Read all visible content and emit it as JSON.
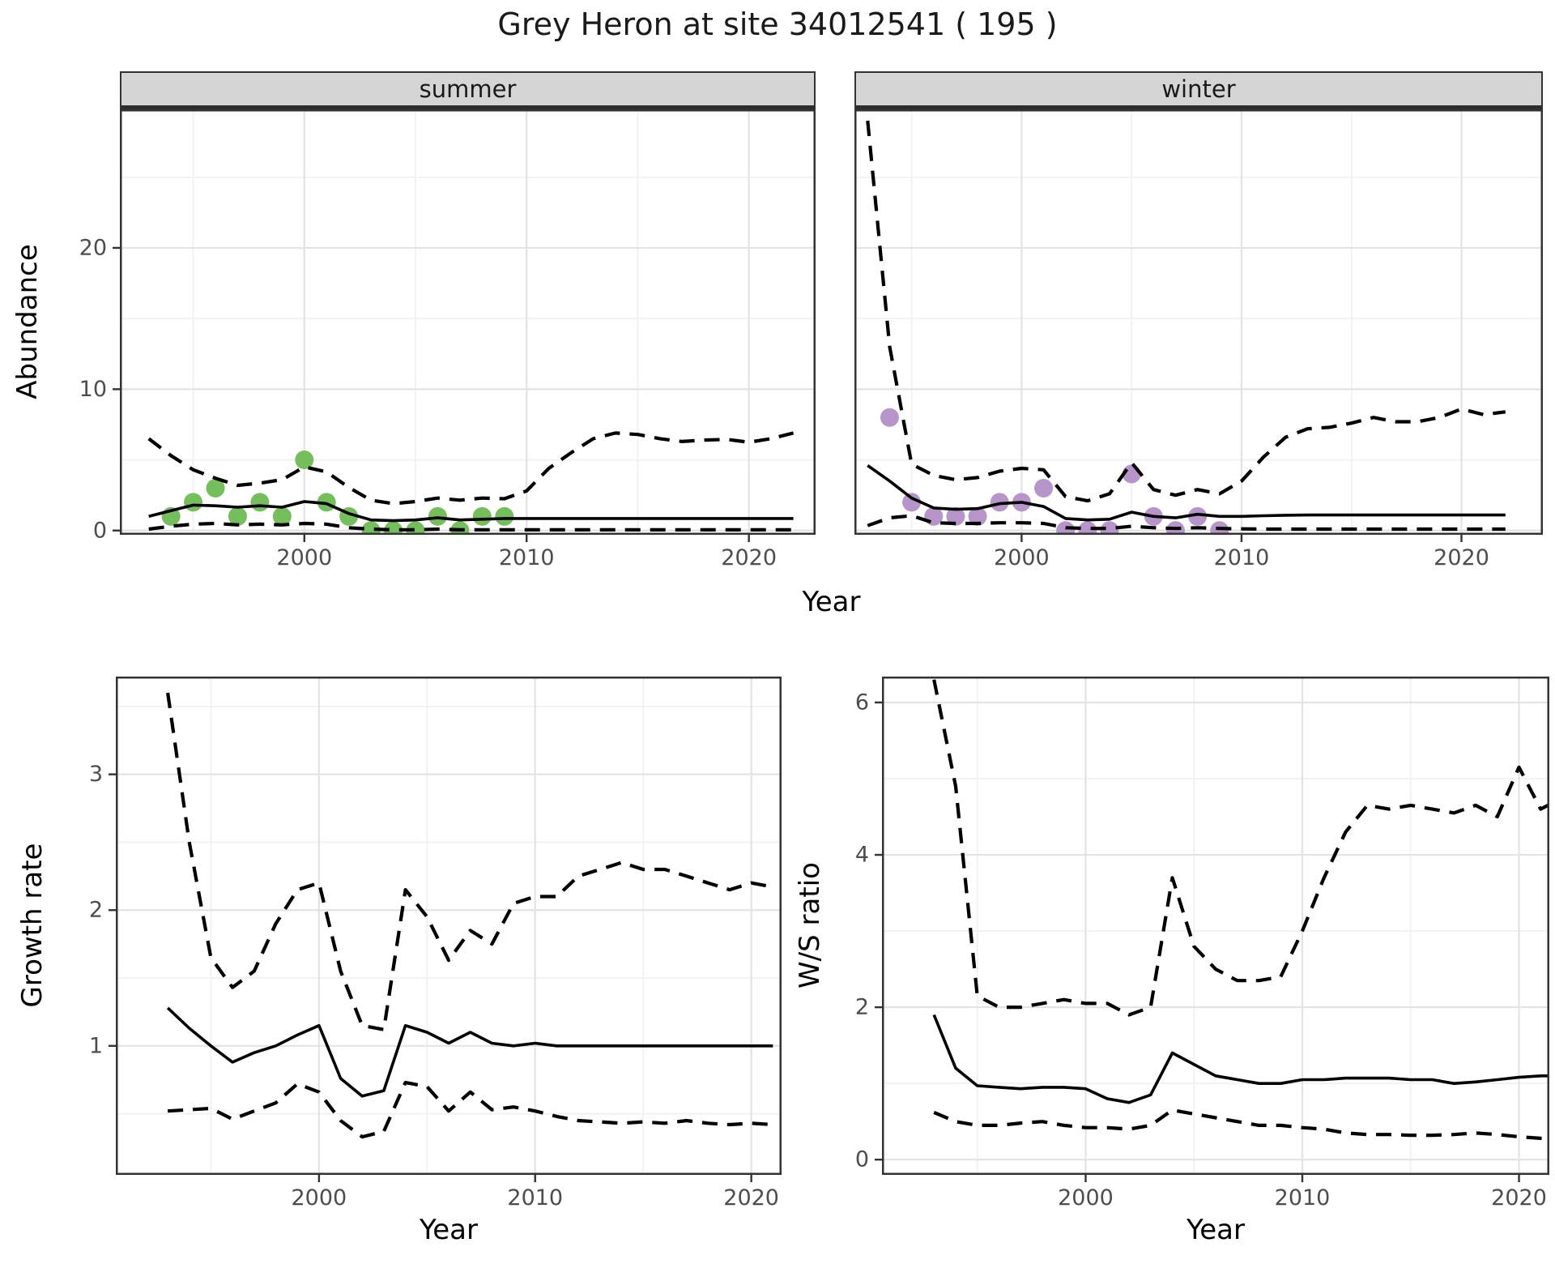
{
  "title": "Grey Heron at site 34012541 ( 195 )",
  "colors": {
    "summer_points": "#74bf5b",
    "winter_points": "#b795ca",
    "line": "#000000",
    "grid_major": "#e3e3e3",
    "grid_minor": "#f1f1f1",
    "panel_border": "#333333",
    "strip_bg": "#d5d5d5",
    "tick_label": "#4d4d4d"
  },
  "chart_data": [
    {
      "id": "abundance-summer",
      "type": "line",
      "facet_label": "summer",
      "xlabel": "Year",
      "ylabel": "Abundance",
      "xlim": [
        1991.7,
        2023.0
      ],
      "ylim": [
        -0.3,
        29.8
      ],
      "xticks": [
        2000,
        2010,
        2020
      ],
      "xticks_minor": [
        1995,
        2005,
        2015
      ],
      "yticks": [
        0,
        10,
        20
      ],
      "yticks_minor": [
        5,
        15,
        25
      ],
      "show_y_axis": true,
      "grid": true,
      "legend": "none",
      "points": {
        "name": "observed-count",
        "color": "#74bf5b",
        "x": [
          1994,
          1995,
          1996,
          1997,
          1998,
          1999,
          2000,
          2001,
          2002,
          2003,
          2004,
          2005,
          2006,
          2007,
          2008,
          2009
        ],
        "y": [
          1,
          2,
          3,
          1,
          2,
          1,
          5,
          2,
          1,
          0,
          0,
          0,
          1,
          0,
          1,
          1
        ]
      },
      "series": [
        {
          "name": "lower-ci",
          "style": "dashed",
          "x": [
            1993,
            1994,
            1995,
            1996,
            1997,
            1998,
            1999,
            2000,
            2001,
            2002,
            2003,
            2004,
            2005,
            2006,
            2007,
            2008,
            2009,
            2010,
            2011,
            2012,
            2013,
            2014,
            2015,
            2016,
            2017,
            2018,
            2019,
            2020,
            2021,
            2022
          ],
          "y": [
            0.1,
            0.3,
            0.45,
            0.5,
            0.4,
            0.45,
            0.4,
            0.5,
            0.45,
            0.2,
            0.1,
            0.05,
            0.05,
            0.1,
            0.05,
            0.05,
            0.05,
            0.05,
            0.05,
            0.05,
            0.05,
            0.05,
            0.05,
            0.05,
            0.05,
            0.05,
            0.05,
            0.05,
            0.05,
            0.05
          ]
        },
        {
          "name": "upper-ci",
          "style": "dashed",
          "x": [
            1993,
            1994,
            1995,
            1996,
            1997,
            1998,
            1999,
            2000,
            2001,
            2002,
            2003,
            2004,
            2005,
            2006,
            2007,
            2008,
            2009,
            2010,
            2011,
            2012,
            2013,
            2014,
            2015,
            2016,
            2017,
            2018,
            2019,
            2020,
            2021,
            2022
          ],
          "y": [
            6.5,
            5.3,
            4.3,
            3.7,
            3.2,
            3.35,
            3.6,
            4.5,
            4.15,
            3.05,
            2.15,
            1.9,
            2.05,
            2.3,
            2.15,
            2.3,
            2.25,
            2.8,
            4.4,
            5.5,
            6.5,
            6.9,
            6.8,
            6.5,
            6.3,
            6.4,
            6.45,
            6.25,
            6.5,
            6.9
          ]
        },
        {
          "name": "median",
          "style": "solid",
          "x": [
            1993,
            1994,
            1995,
            1996,
            1997,
            1998,
            1999,
            2000,
            2001,
            2002,
            2003,
            2004,
            2005,
            2006,
            2007,
            2008,
            2009,
            2010,
            2011,
            2012,
            2013,
            2014,
            2015,
            2016,
            2017,
            2018,
            2019,
            2020,
            2021,
            2022
          ],
          "y": [
            1.0,
            1.4,
            1.8,
            1.75,
            1.65,
            1.75,
            1.65,
            2.05,
            1.9,
            1.2,
            0.75,
            0.7,
            0.75,
            0.9,
            0.75,
            0.8,
            0.85,
            0.85,
            0.85,
            0.85,
            0.85,
            0.85,
            0.85,
            0.85,
            0.85,
            0.85,
            0.85,
            0.85,
            0.85,
            0.85
          ]
        }
      ]
    },
    {
      "id": "abundance-winter",
      "type": "line",
      "facet_label": "winter",
      "xlabel": "Year",
      "ylabel": "Abundance",
      "xlim": [
        1992.4,
        2023.7
      ],
      "ylim": [
        -0.3,
        29.8
      ],
      "xticks": [
        2000,
        2010,
        2020
      ],
      "xticks_minor": [
        1995,
        2005,
        2015
      ],
      "yticks": [
        0,
        10,
        20
      ],
      "yticks_minor": [
        5,
        15,
        25
      ],
      "show_y_axis": false,
      "grid": true,
      "legend": "none",
      "points": {
        "name": "observed-count",
        "color": "#b795ca",
        "x": [
          1994,
          1995,
          1996,
          1997,
          1998,
          1999,
          2000,
          2001,
          2002,
          2003,
          2004,
          2005,
          2006,
          2007,
          2008,
          2009
        ],
        "y": [
          8,
          2,
          1,
          1,
          1,
          2,
          2,
          3,
          0,
          0,
          0,
          4,
          1,
          0,
          1,
          0
        ]
      },
      "series": [
        {
          "name": "lower-ci",
          "style": "dashed",
          "x": [
            1993,
            1994,
            1995,
            1996,
            1997,
            1998,
            1999,
            2000,
            2001,
            2002,
            2003,
            2004,
            2005,
            2006,
            2007,
            2008,
            2009,
            2010,
            2011,
            2012,
            2013,
            2014,
            2015,
            2016,
            2017,
            2018,
            2019,
            2020,
            2021,
            2022
          ],
          "y": [
            0.35,
            0.9,
            1.05,
            0.55,
            0.5,
            0.5,
            0.55,
            0.55,
            0.5,
            0.2,
            0.15,
            0.15,
            0.3,
            0.2,
            0.15,
            0.2,
            0.15,
            0.12,
            0.1,
            0.1,
            0.1,
            0.1,
            0.1,
            0.1,
            0.1,
            0.1,
            0.1,
            0.1,
            0.1,
            0.1
          ]
        },
        {
          "name": "upper-ci",
          "style": "dashed",
          "x": [
            1993,
            1994,
            1995,
            1996,
            1997,
            1998,
            1999,
            2000,
            2001,
            2002,
            2003,
            2004,
            2005,
            2006,
            2007,
            2008,
            2009,
            2010,
            2011,
            2012,
            2013,
            2014,
            2015,
            2016,
            2017,
            2018,
            2019,
            2020,
            2021,
            2022
          ],
          "y": [
            29,
            13,
            4.7,
            3.9,
            3.6,
            3.75,
            4.2,
            4.4,
            4.3,
            2.4,
            2.1,
            2.6,
            4.8,
            2.9,
            2.5,
            2.9,
            2.6,
            3.5,
            5.2,
            6.6,
            7.2,
            7.3,
            7.6,
            8.0,
            7.7,
            7.7,
            8.0,
            8.6,
            8.2,
            8.4
          ]
        },
        {
          "name": "median",
          "style": "solid",
          "x": [
            1993,
            1994,
            1995,
            1996,
            1997,
            1998,
            1999,
            2000,
            2001,
            2002,
            2003,
            2004,
            2005,
            2006,
            2007,
            2008,
            2009,
            2010,
            2011,
            2012,
            2013,
            2014,
            2015,
            2016,
            2017,
            2018,
            2019,
            2020,
            2021,
            2022
          ],
          "y": [
            4.6,
            3.5,
            2.3,
            1.6,
            1.5,
            1.55,
            1.9,
            2.0,
            1.7,
            0.85,
            0.75,
            0.8,
            1.3,
            1.0,
            0.9,
            1.15,
            1.0,
            1.0,
            1.05,
            1.08,
            1.1,
            1.1,
            1.1,
            1.1,
            1.1,
            1.1,
            1.1,
            1.1,
            1.1,
            1.1
          ]
        }
      ]
    },
    {
      "id": "growth-rate",
      "type": "line",
      "facet_label": "",
      "xlabel": "Year",
      "ylabel": "Growth rate",
      "xlim": [
        1990.6,
        2021.4
      ],
      "ylim": [
        0.05,
        3.72
      ],
      "xticks": [
        2000,
        2010,
        2020
      ],
      "xticks_minor": [
        1995,
        2005,
        2015
      ],
      "yticks": [
        1,
        2,
        3
      ],
      "yticks_minor": [
        0.5,
        1.5,
        2.5,
        3.5
      ],
      "show_y_axis": true,
      "grid": true,
      "legend": "none",
      "series": [
        {
          "name": "lower-ci",
          "style": "dashed",
          "x": [
            1993,
            1994,
            1995,
            1996,
            1997,
            1998,
            1999,
            2000,
            2001,
            2002,
            2003,
            2004,
            2005,
            2006,
            2007,
            2008,
            2009,
            2010,
            2011,
            2012,
            2013,
            2014,
            2015,
            2016,
            2017,
            2018,
            2019,
            2020,
            2021
          ],
          "y": [
            0.52,
            0.53,
            0.54,
            0.46,
            0.52,
            0.58,
            0.72,
            0.66,
            0.45,
            0.33,
            0.37,
            0.73,
            0.7,
            0.52,
            0.66,
            0.53,
            0.55,
            0.52,
            0.48,
            0.45,
            0.44,
            0.43,
            0.44,
            0.43,
            0.45,
            0.43,
            0.42,
            0.43,
            0.42
          ]
        },
        {
          "name": "upper-ci",
          "style": "dashed",
          "x": [
            1993,
            1994,
            1995,
            1996,
            1997,
            1998,
            1999,
            2000,
            2001,
            2002,
            2003,
            2004,
            2005,
            2006,
            2007,
            2008,
            2009,
            2010,
            2011,
            2012,
            2013,
            2014,
            2015,
            2016,
            2017,
            2018,
            2019,
            2020,
            2021
          ],
          "y": [
            3.6,
            2.5,
            1.65,
            1.43,
            1.55,
            1.9,
            2.15,
            2.2,
            1.55,
            1.15,
            1.12,
            2.15,
            1.95,
            1.63,
            1.85,
            1.75,
            2.05,
            2.1,
            2.1,
            2.25,
            2.3,
            2.35,
            2.3,
            2.3,
            2.25,
            2.2,
            2.15,
            2.2,
            2.17
          ]
        },
        {
          "name": "median",
          "style": "solid",
          "x": [
            1993,
            1994,
            1995,
            1996,
            1997,
            1998,
            1999,
            2000,
            2001,
            2002,
            2003,
            2004,
            2005,
            2006,
            2007,
            2008,
            2009,
            2010,
            2011,
            2012,
            2013,
            2014,
            2015,
            2016,
            2017,
            2018,
            2019,
            2020,
            2021
          ],
          "y": [
            1.28,
            1.13,
            1.0,
            0.88,
            0.95,
            1.0,
            1.08,
            1.15,
            0.76,
            0.63,
            0.67,
            1.15,
            1.1,
            1.02,
            1.1,
            1.02,
            1.0,
            1.02,
            1.0,
            1.0,
            1.0,
            1.0,
            1.0,
            1.0,
            1.0,
            1.0,
            1.0,
            1.0,
            1.0
          ]
        }
      ]
    },
    {
      "id": "ws-ratio",
      "type": "line",
      "facet_label": "",
      "xlabel": "Year",
      "ylabel": "W/S ratio",
      "xlim": [
        1990.6,
        2021.4
      ],
      "ylim": [
        -0.2,
        6.34
      ],
      "xticks": [
        2000,
        2010,
        2020
      ],
      "xticks_minor": [
        1995,
        2005,
        2015
      ],
      "yticks": [
        0,
        2,
        4,
        6
      ],
      "yticks_minor": [
        1,
        3,
        5
      ],
      "show_y_axis": true,
      "grid": true,
      "legend": "none",
      "series": [
        {
          "name": "lower-ci",
          "style": "dashed",
          "x": [
            1993,
            1994,
            1995,
            1996,
            1997,
            1998,
            1999,
            2000,
            2001,
            2002,
            2003,
            2004,
            2005,
            2006,
            2007,
            2008,
            2009,
            2010,
            2011,
            2012,
            2013,
            2014,
            2015,
            2016,
            2017,
            2018,
            2019,
            2020,
            2021,
            2022
          ],
          "y": [
            0.62,
            0.5,
            0.45,
            0.45,
            0.48,
            0.5,
            0.45,
            0.42,
            0.42,
            0.4,
            0.45,
            0.65,
            0.6,
            0.55,
            0.5,
            0.45,
            0.45,
            0.42,
            0.4,
            0.35,
            0.33,
            0.33,
            0.32,
            0.32,
            0.33,
            0.35,
            0.33,
            0.3,
            0.28,
            0.27
          ]
        },
        {
          "name": "upper-ci",
          "style": "dashed",
          "x": [
            1993,
            1994,
            1995,
            1996,
            1997,
            1998,
            1999,
            2000,
            2001,
            2002,
            2003,
            2004,
            2005,
            2006,
            2007,
            2008,
            2009,
            2010,
            2011,
            2012,
            2013,
            2014,
            2015,
            2016,
            2017,
            2018,
            2019,
            2020,
            2021,
            2022
          ],
          "y": [
            6.3,
            4.9,
            2.15,
            2.0,
            2.0,
            2.05,
            2.1,
            2.05,
            2.05,
            1.9,
            2.0,
            3.7,
            2.8,
            2.5,
            2.35,
            2.35,
            2.4,
            3.0,
            3.7,
            4.3,
            4.65,
            4.6,
            4.65,
            4.6,
            4.55,
            4.65,
            4.5,
            5.15,
            4.6,
            4.75
          ]
        },
        {
          "name": "median",
          "style": "solid",
          "x": [
            1993,
            1994,
            1995,
            1996,
            1997,
            1998,
            1999,
            2000,
            2001,
            2002,
            2003,
            2004,
            2005,
            2006,
            2007,
            2008,
            2009,
            2010,
            2011,
            2012,
            2013,
            2014,
            2015,
            2016,
            2017,
            2018,
            2019,
            2020,
            2021,
            2022
          ],
          "y": [
            1.9,
            1.2,
            0.97,
            0.95,
            0.93,
            0.95,
            0.95,
            0.93,
            0.8,
            0.75,
            0.85,
            1.4,
            1.25,
            1.1,
            1.05,
            1.0,
            1.0,
            1.05,
            1.05,
            1.07,
            1.07,
            1.07,
            1.05,
            1.05,
            1.0,
            1.02,
            1.05,
            1.08,
            1.1,
            1.1
          ]
        }
      ]
    }
  ]
}
